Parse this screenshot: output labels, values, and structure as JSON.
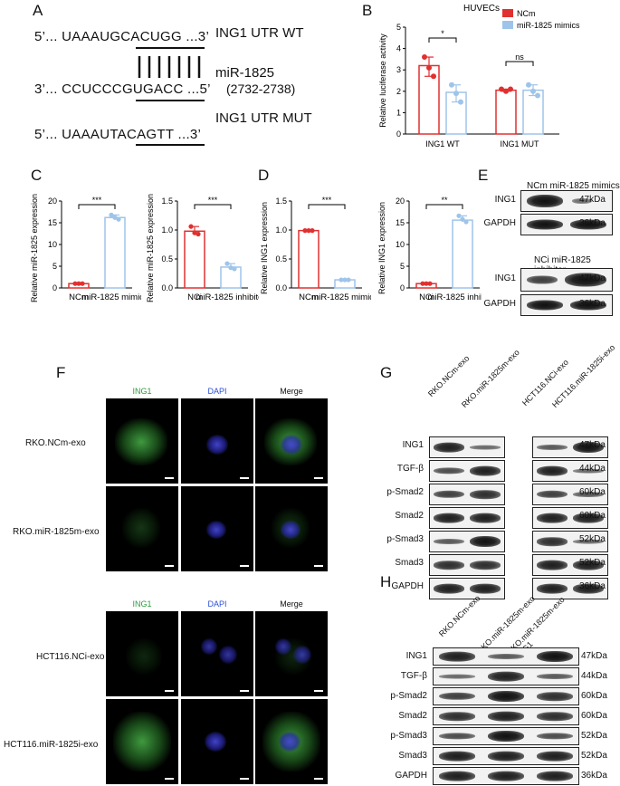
{
  "panels": {
    "A": "A",
    "B": "B",
    "C": "C",
    "D": "D",
    "E": "E",
    "F": "F",
    "G": "G",
    "H": "H"
  },
  "panel_a": {
    "wt_seq": "5’... UAAAUGCACUGG ...3’",
    "wt_label": "ING1 UTR WT",
    "mir_seq": "3’... CCUCCCGUGACC ...5’",
    "mir_label": "miR-1825",
    "mir_pos": "(2732-2738)",
    "mut_seq": "5’... UAAAUTACAGTT ...3’",
    "mut_label": "ING1 UTR MUT"
  },
  "colors": {
    "red": "#e03030",
    "blue": "#9fc4ea"
  },
  "chart_data": [
    {
      "type": "bar",
      "panel": "B",
      "title": "HUVECs",
      "ylabel": "Relative luciferase activity",
      "categories": [
        "ING1 WT",
        "ING1 MUT"
      ],
      "series": [
        {
          "name": "NCm",
          "values": [
            3.2,
            2.05
          ],
          "points": [
            [
              3.6,
              3.1,
              2.7
            ],
            [
              2.1,
              2.0,
              2.1
            ]
          ]
        },
        {
          "name": "miR-1825 mimics",
          "values": [
            1.95,
            2.05
          ],
          "points": [
            [
              2.3,
              1.9,
              1.5
            ],
            [
              2.3,
              2.0,
              1.8
            ]
          ]
        }
      ],
      "ylim": [
        0,
        5
      ],
      "yticks": [
        "0",
        "1",
        "2",
        "3",
        "4",
        "5"
      ],
      "significance": [
        "*",
        "ns"
      ],
      "legend": "top-right"
    },
    {
      "type": "bar",
      "panel": "C1",
      "ylabel": "Relative miR-1825 expression",
      "categories": [
        "NCm",
        "miR-1825 mimics"
      ],
      "values": [
        1.0,
        16.2
      ],
      "points": [
        [
          1.0,
          1.0,
          1.0
        ],
        [
          16.8,
          16.2,
          15.8
        ]
      ],
      "ylim": [
        0,
        20
      ],
      "yticks": [
        "0",
        "5",
        "10",
        "15",
        "20"
      ],
      "significance": "***"
    },
    {
      "type": "bar",
      "panel": "C2",
      "ylabel": "Relative miR-1825 expression",
      "categories": [
        "NCi",
        "miR-1825 inhibitor"
      ],
      "values": [
        0.98,
        0.36
      ],
      "points": [
        [
          1.06,
          0.95,
          0.93
        ],
        [
          0.42,
          0.35,
          0.33
        ]
      ],
      "ylim": [
        0,
        1.5
      ],
      "yticks": [
        "0.0",
        "0.5",
        "1.0",
        "1.5"
      ],
      "significance": "***"
    },
    {
      "type": "bar",
      "panel": "D1",
      "ylabel": "Relative ING1 expression",
      "categories": [
        "NCm",
        "miR-1825 mimics"
      ],
      "values": [
        0.99,
        0.14
      ],
      "points": [
        [
          0.99,
          0.99,
          0.99
        ],
        [
          0.14,
          0.14,
          0.14
        ]
      ],
      "ylim": [
        0,
        1.5
      ],
      "yticks": [
        "0.0",
        "0.5",
        "1.0",
        "1.5"
      ],
      "significance": "***"
    },
    {
      "type": "bar",
      "panel": "D2",
      "ylabel": "Relative ING1 expression",
      "categories": [
        "NCi",
        "miR-1825 inhibitor"
      ],
      "values": [
        1.0,
        15.6
      ],
      "points": [
        [
          1.0,
          1.0,
          1.0
        ],
        [
          16.6,
          15.8,
          15.2
        ]
      ],
      "ylim": [
        0,
        20
      ],
      "yticks": [
        "0",
        "5",
        "10",
        "15",
        "20"
      ],
      "significance": "**"
    }
  ],
  "panel_e": {
    "top_header": "NCm miR-1825 mimics",
    "bottom_header": "NCi miR-1825 inhibitor",
    "rows_top": [
      {
        "label": "ING1",
        "kda": "47kDa"
      },
      {
        "label": "GAPDH",
        "kda": "36kDa"
      }
    ],
    "rows_bottom": [
      {
        "label": "ING1",
        "kda": "47kDa"
      },
      {
        "label": "GAPDH",
        "kda": "36kDa"
      }
    ]
  },
  "panel_f": {
    "headers": [
      "ING1",
      "DAPI",
      "Merge"
    ],
    "rows_top": [
      "RKO.NCm-exo",
      "RKO.miR-1825m-exo"
    ],
    "rows_bottom": [
      "HCT116.NCi-exo",
      "HCT116.miR-1825i-exo"
    ]
  },
  "panel_g": {
    "lanes_left": [
      "RKO.NCm-exo",
      "RKO.miR-1825m-exo"
    ],
    "lanes_right": [
      "HCT116.NCi-exo",
      "HCT116.miR-1825i-exo"
    ],
    "rows": [
      {
        "label": "ING1",
        "kda": "47kDa"
      },
      {
        "label": "TGF-β",
        "kda": "44kDa"
      },
      {
        "label": "p-Smad2",
        "kda": "60kDa"
      },
      {
        "label": "Smad2",
        "kda": "60kDa"
      },
      {
        "label": "p-Smad3",
        "kda": "52kDa"
      },
      {
        "label": "Smad3",
        "kda": "52kDa"
      },
      {
        "label": "GAPDH",
        "kda": "36kDa"
      }
    ]
  },
  "panel_h": {
    "lanes": [
      "RKO.NCm-exo",
      "RKO.miR-1825m-exo",
      "RKO.miR-1825m-exo +ING1"
    ],
    "rows": [
      {
        "label": "ING1",
        "kda": "47kDa"
      },
      {
        "label": "TGF-β",
        "kda": "44kDa"
      },
      {
        "label": "p-Smad2",
        "kda": "60kDa"
      },
      {
        "label": "Smad2",
        "kda": "60kDa"
      },
      {
        "label": "p-Smad3",
        "kda": "52kDa"
      },
      {
        "label": "Smad3",
        "kda": "52kDa"
      },
      {
        "label": "GAPDH",
        "kda": "36kDa"
      }
    ]
  }
}
